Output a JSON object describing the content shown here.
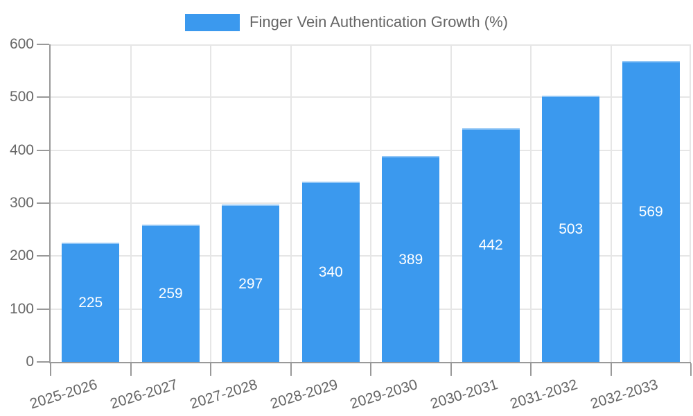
{
  "chart_data": {
    "type": "bar",
    "title": "Finger Vein Authentication Growth (%)",
    "legend": {
      "label": "Finger Vein Authentication Growth (%)",
      "position": "top"
    },
    "categories": [
      "2025-2026",
      "2026-2027",
      "2027-2028",
      "2028-2029",
      "2029-2030",
      "2030-2031",
      "2031-2032",
      "2032-2033"
    ],
    "values": [
      225,
      259,
      297,
      340,
      389,
      442,
      503,
      569
    ],
    "show_bar_value_labels": true,
    "xlabel": "",
    "ylabel": "",
    "ylim": [
      0,
      600
    ],
    "yticks": [
      0,
      100,
      200,
      300,
      400,
      500,
      600
    ],
    "grid": true,
    "bar_color": "#3b99ee",
    "bar_value_label_color": "#ffffff",
    "axis_text_color": "#666666",
    "axis_line_color": "#999999",
    "gridline_color": "#e6e6e6",
    "background_color": "#ffffff"
  }
}
